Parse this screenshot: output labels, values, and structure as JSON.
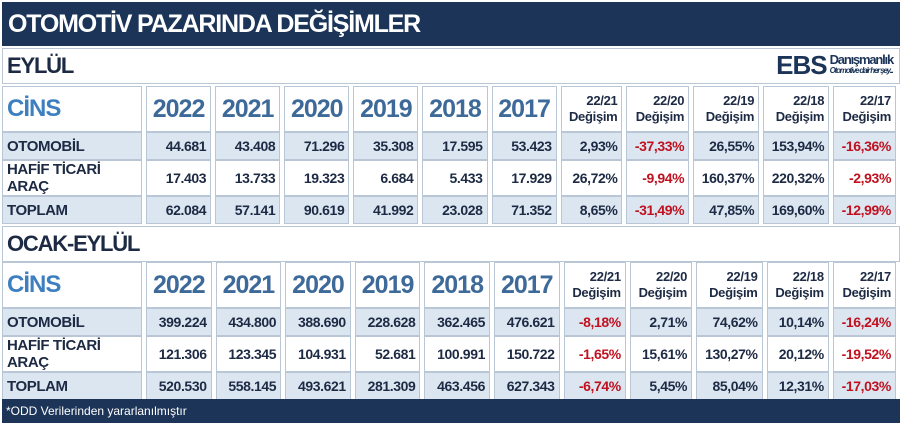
{
  "title": "OTOMOTİV PAZARINDA DEĞİŞİMLER",
  "logo": {
    "mark": "EBS",
    "name": "Danışmanlık",
    "tagline": "Otomotive dair her şey..."
  },
  "headers": {
    "label": "CİNS",
    "years": [
      "2022",
      "2021",
      "2020",
      "2019",
      "2018",
      "2017"
    ],
    "changes": [
      [
        "22/21",
        "Değişim"
      ],
      [
        "22/20",
        "Değişim"
      ],
      [
        "22/19",
        "Değişim"
      ],
      [
        "22/18",
        "Değişim"
      ],
      [
        "22/17",
        "Değişim"
      ]
    ]
  },
  "sections": [
    {
      "title": "EYLÜL",
      "rows": [
        {
          "label": "OTOMOBİL",
          "values": [
            "44.681",
            "43.408",
            "71.296",
            "35.308",
            "17.595",
            "53.423"
          ],
          "changes": [
            "2,93%",
            "-37,33%",
            "26,55%",
            "153,94%",
            "-16,36%"
          ]
        },
        {
          "label": "HAFİF TİCARİ ARAÇ",
          "values": [
            "17.403",
            "13.733",
            "19.323",
            "6.684",
            "5.433",
            "17.929"
          ],
          "changes": [
            "26,72%",
            "-9,94%",
            "160,37%",
            "220,32%",
            "-2,93%"
          ]
        },
        {
          "label": "TOPLAM",
          "values": [
            "62.084",
            "57.141",
            "90.619",
            "41.992",
            "23.028",
            "71.352"
          ],
          "changes": [
            "8,65%",
            "-31,49%",
            "47,85%",
            "169,60%",
            "-12,99%"
          ]
        }
      ]
    },
    {
      "title": "OCAK-EYLÜL",
      "rows": [
        {
          "label": "OTOMOBİL",
          "values": [
            "399.224",
            "434.800",
            "388.690",
            "228.628",
            "362.465",
            "476.621"
          ],
          "changes": [
            "-8,18%",
            "2,71%",
            "74,62%",
            "10,14%",
            "-16,24%"
          ]
        },
        {
          "label": "HAFİF TİCARİ ARAÇ",
          "values": [
            "121.306",
            "123.345",
            "104.931",
            "52.681",
            "100.991",
            "150.722"
          ],
          "changes": [
            "-1,65%",
            "15,61%",
            "130,27%",
            "20,12%",
            "-19,52%"
          ]
        },
        {
          "label": "TOPLAM",
          "values": [
            "520.530",
            "558.145",
            "493.621",
            "281.309",
            "463.456",
            "627.343"
          ],
          "changes": [
            "-6,74%",
            "5,45%",
            "85,04%",
            "12,31%",
            "-17,03%"
          ]
        }
      ]
    }
  ],
  "footer": "*ODD Verilerinden yararlanılmıştır",
  "colors": {
    "navy": "#1b3457",
    "negative": "#c0111f",
    "shade": "#dce6f1"
  }
}
